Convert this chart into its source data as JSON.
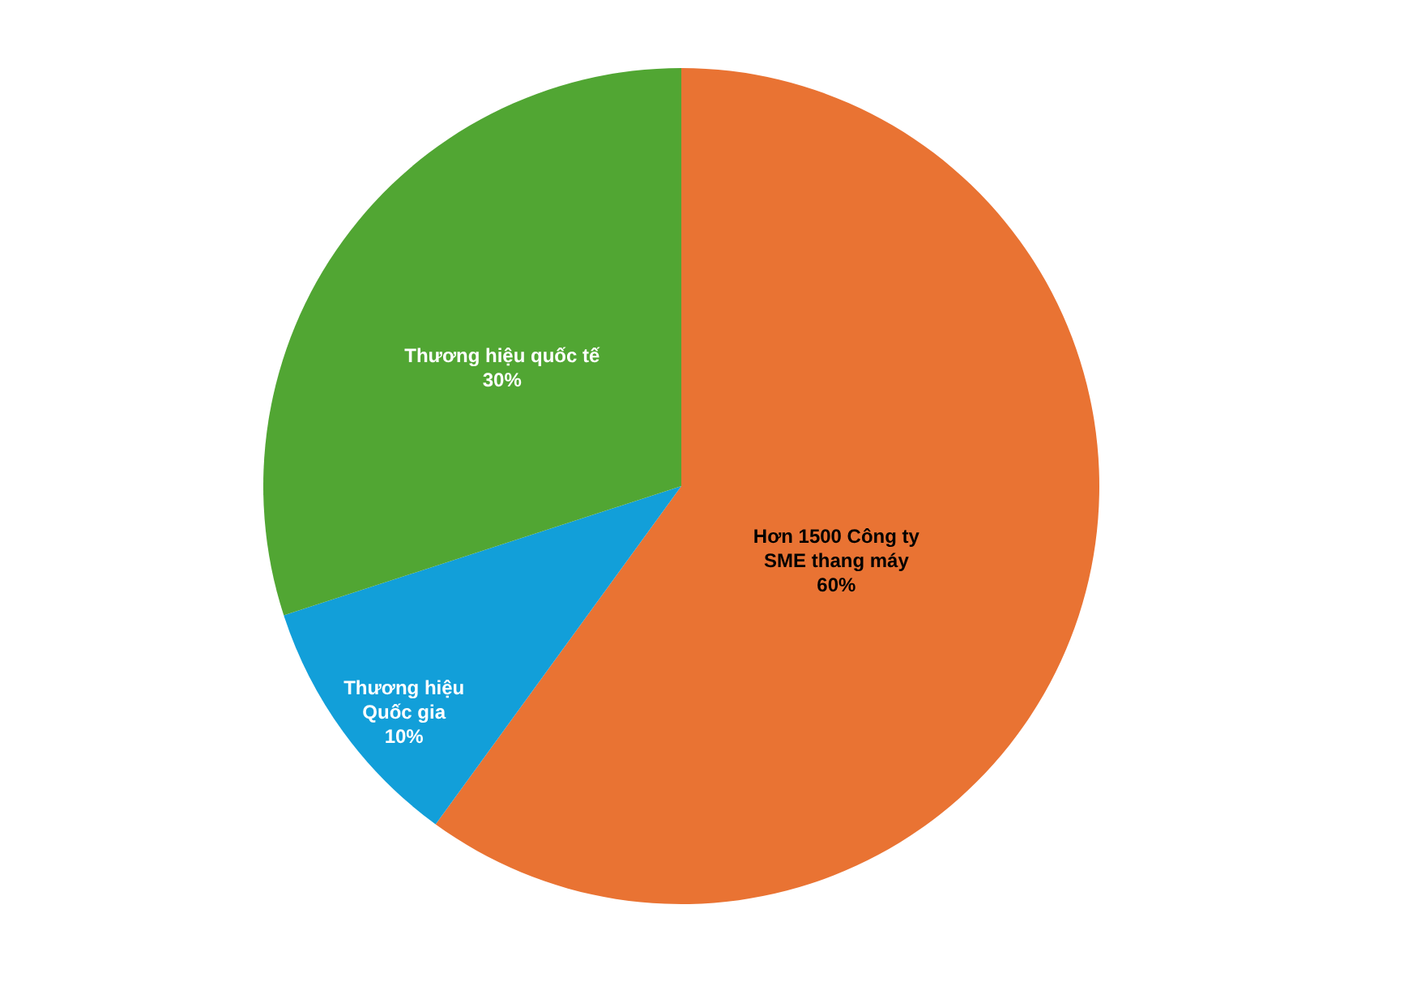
{
  "chart_data": {
    "type": "pie",
    "categories": [
      "Hơn 1500 Công ty SME thang máy",
      "Thương hiệu Quốc gia",
      "Thương hiệu quốc tế"
    ],
    "values": [
      60,
      10,
      30
    ],
    "value_labels": [
      "60%",
      "10%",
      "30%"
    ],
    "colors": [
      "#e97333",
      "#129fd9",
      "#51a633"
    ]
  }
}
